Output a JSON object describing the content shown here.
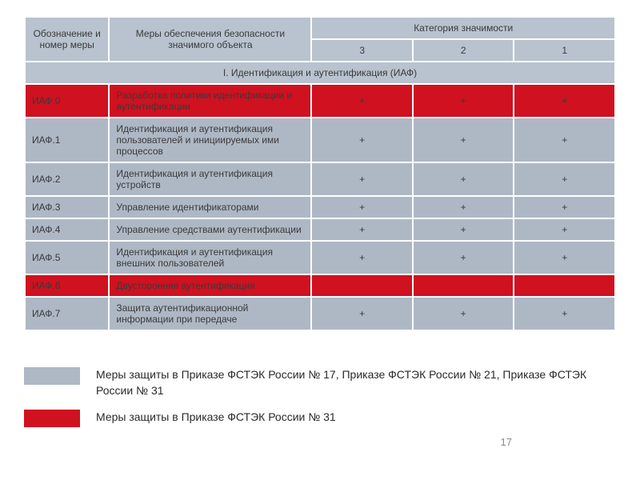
{
  "table": {
    "header": {
      "col1": "Обозначение и номер меры",
      "col2": "Меры обеспечения безопасности значимого объекта",
      "col_group": "Категория значимости",
      "cat3": "3",
      "cat2": "2",
      "cat1": "1"
    },
    "section_title": "I. Идентификация и аутентификация (ИАФ)",
    "rows": [
      {
        "id": "ИАФ.0",
        "desc": "Разработка политики идентификации и аутентификации",
        "c3": "+",
        "c2": "+",
        "c1": "+",
        "kind": "red"
      },
      {
        "id": "ИАФ.1",
        "desc": "Идентификация и аутентификация пользователей и инициируемых ими процессов",
        "c3": "+",
        "c2": "+",
        "c1": "+",
        "kind": "blue"
      },
      {
        "id": "ИАФ.2",
        "desc": "Идентификация и аутентификация устройств",
        "c3": "+",
        "c2": "+",
        "c1": "+",
        "kind": "blue"
      },
      {
        "id": "ИАФ.3",
        "desc": "Управление идентификаторами",
        "c3": "+",
        "c2": "+",
        "c1": "+",
        "kind": "blue"
      },
      {
        "id": "ИАФ.4",
        "desc": "Управление средствами аутентификации",
        "c3": "+",
        "c2": "+",
        "c1": "+",
        "kind": "blue"
      },
      {
        "id": "ИАФ.5",
        "desc": "Идентификация и аутентификация внешних пользователей",
        "c3": "+",
        "c2": "+",
        "c1": "+",
        "kind": "blue"
      },
      {
        "id": "ИАФ.6",
        "desc": "Двусторонняя аутентификация",
        "c3": "",
        "c2": "",
        "c1": "",
        "kind": "red"
      },
      {
        "id": "ИАФ.7",
        "desc": "Защита аутентификационной информации при передаче",
        "c3": "+",
        "c2": "+",
        "c1": "+",
        "kind": "blue"
      }
    ]
  },
  "legend": {
    "items": [
      {
        "color": "#aeb8c5",
        "text": "Меры защиты в Приказе ФСТЭК  России № 17, Приказе ФСТЭК  России № 21, Приказе  ФСТЭК  России № 31"
      },
      {
        "color": "#cf1120",
        "text": "Меры защиты в Приказе ФСТЭК  России  № 31"
      }
    ]
  },
  "page_number": "17",
  "colors": {
    "blue_row": "#aeb8c5",
    "red_row": "#cf1120",
    "header_bg": "#b8c3cf",
    "border": "#ffffff"
  }
}
